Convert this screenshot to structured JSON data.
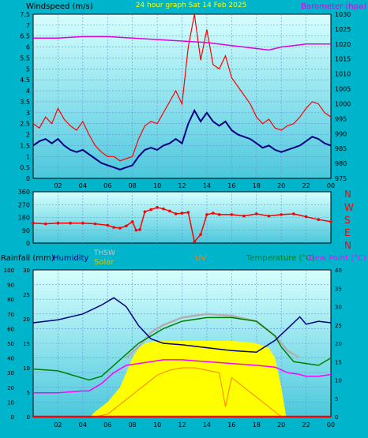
{
  "colors": {
    "page_bg": "#00b4cc",
    "plot_bg_top": "#d7ffff",
    "plot_bg_bottom": "#4cc8dc",
    "grid": "#6a8fd8",
    "wind_gust": "#ff0000",
    "wind_avg": "#000080",
    "barometer": "#e000e0",
    "direction": "#ff0000",
    "humidity": "#000080",
    "temperature": "#008000",
    "dewpoint": "#ff00ff",
    "solar": "#ffff00",
    "thsw": "#b0b0b0",
    "uv": "#ff8000",
    "rain": "#ff0000",
    "axis_text": "#000000",
    "title_text": "#ffff00",
    "compass_text": "#ff0000"
  },
  "chart_data": [
    {
      "type": "line",
      "title": "24 hour graph Sat 14 Feb 2025",
      "ylabel_left": "Windspeed (m/s)",
      "ylabel_right": "Barometer (hpa)",
      "x_tick_labels": [
        "02",
        "04",
        "06",
        "08",
        "10",
        "12",
        "14",
        "16",
        "18",
        "20",
        "22",
        "00"
      ],
      "x_range_hours": [
        0,
        24
      ],
      "y_left_range": [
        0,
        7.5
      ],
      "y_left_ticks": [
        "0",
        "0.5",
        "1",
        "1.5",
        "2",
        "2.5",
        "3",
        "3.5",
        "4",
        "4.5",
        "5",
        "5.5",
        "6",
        "6.5",
        "7",
        "7.5"
      ],
      "y_right_range": [
        975,
        1030
      ],
      "y_right_ticks": [
        "975",
        "980",
        "985",
        "990",
        "995",
        "1000",
        "1005",
        "1010",
        "1015",
        "1020",
        "1025",
        "1030"
      ],
      "grid": true,
      "series": [
        {
          "key": "gust",
          "axis": "left",
          "x": [
            0,
            0.5,
            1,
            1.5,
            2,
            2.5,
            3,
            3.5,
            4,
            4.5,
            5,
            5.5,
            6,
            6.5,
            7,
            7.5,
            8,
            8.5,
            9,
            9.5,
            10,
            10.5,
            11,
            11.5,
            12,
            12.5,
            13,
            13.5,
            14,
            14.5,
            15,
            15.5,
            16,
            16.5,
            17,
            17.5,
            18,
            18.5,
            19,
            19.5,
            20,
            20.5,
            21,
            21.5,
            22,
            22.5,
            23,
            23.5,
            24
          ],
          "values": [
            2.5,
            2.3,
            2.8,
            2.5,
            3.2,
            2.7,
            2.4,
            2.2,
            2.6,
            2.0,
            1.5,
            1.2,
            1.0,
            1.0,
            0.8,
            0.9,
            1.0,
            1.8,
            2.4,
            2.6,
            2.5,
            3.0,
            3.5,
            4.0,
            3.4,
            6.0,
            7.5,
            5.4,
            6.8,
            5.2,
            5.0,
            5.6,
            4.6,
            4.2,
            3.8,
            3.4,
            2.8,
            2.5,
            2.7,
            2.3,
            2.2,
            2.4,
            2.5,
            2.8,
            3.2,
            3.5,
            3.4,
            3.0,
            2.8
          ]
        },
        {
          "key": "avg",
          "axis": "left",
          "x": [
            0,
            0.5,
            1,
            1.5,
            2,
            2.5,
            3,
            3.5,
            4,
            4.5,
            5,
            5.5,
            6,
            6.5,
            7,
            7.5,
            8,
            8.5,
            9,
            9.5,
            10,
            10.5,
            11,
            11.5,
            12,
            12.5,
            13,
            13.5,
            14,
            14.5,
            15,
            15.5,
            16,
            16.5,
            17,
            17.5,
            18,
            18.5,
            19,
            19.5,
            20,
            20.5,
            21,
            21.5,
            22,
            22.5,
            23,
            23.5,
            24
          ],
          "values": [
            1.5,
            1.7,
            1.8,
            1.6,
            1.8,
            1.5,
            1.3,
            1.2,
            1.3,
            1.1,
            0.9,
            0.7,
            0.6,
            0.5,
            0.4,
            0.5,
            0.6,
            1.0,
            1.3,
            1.4,
            1.3,
            1.5,
            1.6,
            1.8,
            1.6,
            2.5,
            3.1,
            2.6,
            3.0,
            2.6,
            2.4,
            2.6,
            2.2,
            2.0,
            1.9,
            1.8,
            1.6,
            1.4,
            1.5,
            1.3,
            1.2,
            1.3,
            1.4,
            1.5,
            1.7,
            1.9,
            1.8,
            1.6,
            1.5
          ]
        },
        {
          "key": "barometer",
          "axis": "right",
          "x": [
            0,
            2,
            4,
            6,
            8,
            10,
            12,
            14,
            16,
            18,
            19,
            20,
            22,
            24
          ],
          "values": [
            1022,
            1022,
            1022.5,
            1022.5,
            1022,
            1021.5,
            1021,
            1020.5,
            1019.5,
            1018.5,
            1018,
            1019,
            1020,
            1020
          ]
        }
      ]
    },
    {
      "type": "scatter",
      "ylabel_right_compass": [
        "N",
        "W",
        "S",
        "E",
        "N"
      ],
      "y_range": [
        0,
        360
      ],
      "y_ticks": [
        "0",
        "90",
        "180",
        "270",
        "360"
      ],
      "x_range_hours": [
        0,
        24
      ],
      "grid": true,
      "series": [
        {
          "key": "direction",
          "x": [
            0,
            1,
            2,
            3,
            4,
            5,
            6,
            6.5,
            7,
            7.5,
            8,
            8.3,
            8.6,
            9,
            9.5,
            10,
            10.5,
            11,
            11.5,
            12,
            12.5,
            13,
            13.5,
            14,
            14.5,
            15,
            16,
            17,
            18,
            19,
            20,
            21,
            22,
            23,
            24
          ],
          "values": [
            140,
            135,
            140,
            140,
            140,
            135,
            125,
            110,
            105,
            120,
            150,
            90,
            95,
            220,
            235,
            250,
            240,
            225,
            205,
            210,
            215,
            10,
            60,
            200,
            210,
            200,
            200,
            190,
            205,
            190,
            200,
            205,
            185,
            165,
            150
          ]
        }
      ]
    },
    {
      "type": "line",
      "legend_labels": [
        "Rainfall (mm)",
        "Humidity",
        "THSW",
        "Solar",
        "UV",
        "Temperature (°C)",
        "Dew Point (°C)"
      ],
      "x_tick_labels": [
        "02",
        "04",
        "06",
        "08",
        "10",
        "12",
        "14",
        "16",
        "18",
        "20",
        "22",
        "00"
      ],
      "x_range_hours": [
        0,
        24
      ],
      "humidity_range": [
        0,
        100
      ],
      "humidity_ticks": [
        "0",
        "10",
        "20",
        "30",
        "40",
        "50",
        "60",
        "70",
        "80",
        "90",
        "100"
      ],
      "rain_range": [
        0,
        30
      ],
      "rain_ticks": [
        "0",
        "5",
        "10",
        "15",
        "20",
        "25",
        "30"
      ],
      "temp_range": [
        0,
        40
      ],
      "temp_ticks": [
        "0",
        "5",
        "10",
        "15",
        "20",
        "25",
        "30",
        "35",
        "40"
      ],
      "grid": true,
      "series": [
        {
          "key": "humidity",
          "axis": "humidity",
          "x": [
            0,
            2,
            4,
            5.5,
            6.5,
            7.5,
            8.5,
            9.5,
            10.5,
            12,
            14,
            16,
            18,
            19.5,
            20.5,
            21.5,
            22,
            23,
            24
          ],
          "values": [
            64,
            66,
            70,
            76,
            81,
            75,
            62,
            53,
            50,
            49,
            47,
            45,
            44,
            52,
            60,
            68,
            63,
            65,
            64
          ]
        },
        {
          "key": "temperature",
          "axis": "temp",
          "x": [
            0,
            2,
            3,
            4,
            4.5,
            5.5,
            6.5,
            7.5,
            8.5,
            9.5,
            10.5,
            12,
            14,
            16,
            18,
            19.5,
            20,
            20.5,
            21,
            22,
            23,
            24
          ],
          "values": [
            13,
            12.5,
            11.5,
            10.5,
            10,
            11,
            14,
            17,
            20,
            22,
            24,
            26,
            27,
            27,
            26,
            22,
            19,
            17,
            15,
            14.5,
            14,
            16
          ]
        },
        {
          "key": "dewpoint",
          "axis": "temp",
          "x": [
            0,
            2,
            4,
            4.5,
            5.5,
            6.5,
            7.5,
            8.5,
            9.5,
            10.5,
            12,
            14,
            16,
            18,
            19.5,
            20.5,
            21.5,
            22,
            23,
            24
          ],
          "values": [
            6.5,
            6.5,
            7,
            7,
            9,
            12,
            14,
            14.5,
            15,
            15.5,
            15.5,
            15,
            14.5,
            14,
            13.5,
            12,
            11.5,
            11,
            11,
            11.5
          ]
        },
        {
          "key": "thsw",
          "axis": "temp",
          "x": [
            7.5,
            8.5,
            9.5,
            10.5,
            12,
            14,
            16,
            18,
            19.5,
            20.5,
            21.5
          ],
          "values": [
            16,
            19,
            23,
            25,
            27,
            28,
            27.5,
            26,
            22,
            18,
            16
          ]
        },
        {
          "key": "solar",
          "axis": "rain",
          "x": [
            4.6,
            5,
            6,
            7,
            8,
            8.5,
            9,
            10,
            12,
            14,
            16,
            18,
            19,
            19.5,
            20,
            20.4
          ],
          "values": [
            0,
            1,
            3,
            6,
            12,
            14,
            15,
            15.5,
            15.5,
            15.5,
            15.5,
            15,
            14,
            12,
            6,
            0
          ]
        },
        {
          "key": "uv",
          "axis": "rain",
          "x": [
            5,
            6,
            6.5,
            7,
            7.5,
            8,
            8.5,
            9,
            9.5,
            10,
            11,
            12,
            13,
            14,
            15,
            15.5,
            16,
            16.5,
            17,
            17.5,
            18,
            18.5,
            19,
            19.5,
            20
          ],
          "values": [
            0,
            0.5,
            1.5,
            2.5,
            3.5,
            4.5,
            5.5,
            6.5,
            7.5,
            8.5,
            9.5,
            10,
            10,
            9.5,
            9,
            2,
            8,
            7,
            6,
            5,
            4,
            3,
            2,
            1,
            0
          ]
        },
        {
          "key": "rain",
          "axis": "rain",
          "x": [
            0,
            24
          ],
          "values": [
            0,
            0
          ]
        }
      ]
    }
  ]
}
